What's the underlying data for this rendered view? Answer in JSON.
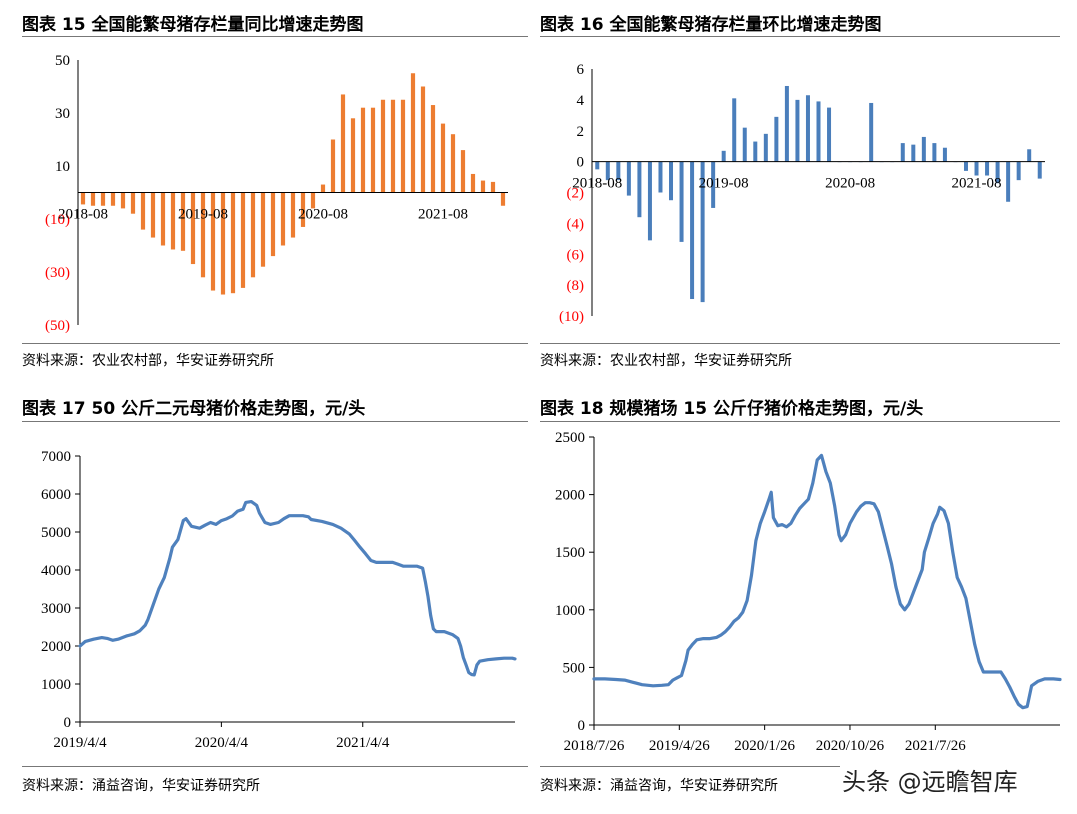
{
  "panels": [
    {
      "title": "图表 15  全国能繁母猪存栏量同比增速走势图",
      "source": "资料来源：农业农村部，华安证券研究所"
    },
    {
      "title": "图表 16 全国能繁母猪存栏量环比增速走势图",
      "source": "资料来源：农业农村部，华安证券研究所"
    },
    {
      "title": "图表 17 50 公斤二元母猪价格走势图，元/头",
      "source": "资料来源：涌益咨询，华安证券研究所"
    },
    {
      "title": "图表 18  规模猪场 15 公斤仔猪价格走势图，元/头",
      "source": "资料来源：涌益咨询，华安证券研究所"
    }
  ],
  "watermark": "头条 @远瞻智库",
  "colors": {
    "orange": "#ED7D31",
    "blue": "#4A7EBB",
    "line": "#4F81BD",
    "negative": "#FF0000"
  },
  "chart_data": [
    {
      "type": "bar",
      "ylim": [
        -50,
        50
      ],
      "yticks": [
        50,
        30,
        10,
        -10,
        -30,
        -50
      ],
      "ytick_labels": [
        "50",
        "30",
        "10",
        "(10)",
        "(30)",
        "(50)"
      ],
      "xtick_labels": [
        "2018-08",
        "2019-08",
        "2020-08",
        "2021-08"
      ],
      "xtick_positions": [
        0,
        12,
        24,
        36
      ],
      "values": [
        -4.5,
        -5,
        -5,
        -5,
        -6,
        -8,
        -14,
        -17,
        -20,
        -21.5,
        -22,
        -27,
        -32,
        -37,
        -38.5,
        -38,
        -36,
        -32,
        -28,
        -24,
        -20,
        -17,
        -13,
        -6,
        3,
        20,
        37,
        28,
        32,
        32,
        35,
        35,
        35,
        45,
        40,
        33,
        26,
        22,
        16,
        7,
        4.5,
        4,
        -5
      ]
    },
    {
      "type": "bar",
      "ylim": [
        -10,
        6
      ],
      "yticks": [
        6,
        4,
        2,
        0,
        -2,
        -4,
        -6,
        -8,
        -10
      ],
      "ytick_labels": [
        "6",
        "4",
        "2",
        "0",
        "(2)",
        "(4)",
        "(6)",
        "(8)",
        "(10)"
      ],
      "xtick_labels": [
        "2018-08",
        "2019-08",
        "2020-08",
        "2021-08"
      ],
      "xtick_positions": [
        0,
        12,
        24,
        36
      ],
      "values": [
        -0.5,
        -1.2,
        -1.2,
        -2.2,
        -3.6,
        -5.1,
        -2,
        -2.5,
        -5.2,
        -8.9,
        -9.1,
        -3,
        0.7,
        4.1,
        2.2,
        1.3,
        1.8,
        2.9,
        4.9,
        4,
        4.3,
        3.9,
        3.5,
        0,
        0,
        0,
        3.8,
        0,
        0,
        1.2,
        1.1,
        1.6,
        1.2,
        0.9,
        0,
        -0.6,
        -0.9,
        -0.9,
        -1.4,
        -2.6,
        -1.2,
        0.8,
        -1.1
      ]
    },
    {
      "type": "line",
      "ylim": [
        0,
        7000
      ],
      "yticks": [
        0,
        1000,
        2000,
        3000,
        4000,
        5000,
        6000,
        7000
      ],
      "xtick_labels": [
        "2019/4/4",
        "2020/4/4",
        "2021/4/4"
      ],
      "xtick_positions": [
        0,
        52,
        104
      ],
      "x_range": [
        0,
        146
      ],
      "points": [
        [
          0,
          2000
        ],
        [
          2,
          2120
        ],
        [
          5,
          2180
        ],
        [
          8,
          2220
        ],
        [
          10,
          2200
        ],
        [
          12,
          2150
        ],
        [
          14,
          2180
        ],
        [
          17,
          2260
        ],
        [
          20,
          2320
        ],
        [
          22,
          2400
        ],
        [
          24,
          2550
        ],
        [
          25,
          2700
        ],
        [
          27,
          3100
        ],
        [
          29,
          3500
        ],
        [
          31,
          3800
        ],
        [
          33,
          4300
        ],
        [
          34,
          4600
        ],
        [
          36,
          4800
        ],
        [
          38,
          5300
        ],
        [
          39,
          5350
        ],
        [
          41,
          5150
        ],
        [
          44,
          5100
        ],
        [
          46,
          5180
        ],
        [
          48,
          5250
        ],
        [
          50,
          5200
        ],
        [
          52,
          5300
        ],
        [
          54,
          5350
        ],
        [
          56,
          5420
        ],
        [
          58,
          5550
        ],
        [
          60,
          5600
        ],
        [
          61,
          5780
        ],
        [
          63,
          5800
        ],
        [
          65,
          5700
        ],
        [
          66,
          5500
        ],
        [
          68,
          5250
        ],
        [
          70,
          5200
        ],
        [
          73,
          5250
        ],
        [
          75,
          5350
        ],
        [
          77,
          5430
        ],
        [
          82,
          5430
        ],
        [
          84,
          5400
        ],
        [
          85,
          5330
        ],
        [
          89,
          5280
        ],
        [
          93,
          5200
        ],
        [
          96,
          5100
        ],
        [
          99,
          4950
        ],
        [
          101,
          4780
        ],
        [
          103,
          4600
        ],
        [
          105,
          4430
        ],
        [
          107,
          4250
        ],
        [
          109,
          4200
        ],
        [
          115,
          4200
        ],
        [
          117,
          4150
        ],
        [
          119,
          4100
        ],
        [
          124,
          4100
        ],
        [
          126,
          4050
        ],
        [
          127,
          3700
        ],
        [
          128,
          3300
        ],
        [
          129,
          2800
        ],
        [
          130,
          2450
        ],
        [
          131,
          2380
        ],
        [
          134,
          2380
        ],
        [
          137,
          2300
        ],
        [
          139,
          2200
        ],
        [
          140,
          2000
        ],
        [
          141,
          1700
        ],
        [
          142,
          1500
        ],
        [
          143,
          1300
        ],
        [
          144,
          1250
        ],
        [
          145,
          1240
        ],
        [
          146,
          1500
        ],
        [
          147,
          1600
        ],
        [
          150,
          1640
        ],
        [
          153,
          1660
        ],
        [
          156,
          1680
        ],
        [
          159,
          1680
        ],
        [
          160,
          1660
        ]
      ]
    },
    {
      "type": "line",
      "ylim": [
        0,
        2500
      ],
      "yticks": [
        0,
        500,
        1000,
        1500,
        2000,
        2500
      ],
      "xtick_labels": [
        "2018/7/26",
        "2019/4/26",
        "2020/1/26",
        "2020/10/26",
        "2021/7/26"
      ],
      "xtick_positions": [
        0,
        39,
        78,
        117,
        156
      ],
      "x_range": [
        0,
        195
      ],
      "points": [
        [
          0,
          400
        ],
        [
          5,
          400
        ],
        [
          10,
          395
        ],
        [
          14,
          390
        ],
        [
          18,
          370
        ],
        [
          22,
          350
        ],
        [
          27,
          340
        ],
        [
          31,
          345
        ],
        [
          34,
          350
        ],
        [
          36,
          390
        ],
        [
          38,
          410
        ],
        [
          40,
          430
        ],
        [
          42,
          560
        ],
        [
          43,
          650
        ],
        [
          45,
          700
        ],
        [
          47,
          740
        ],
        [
          50,
          750
        ],
        [
          53,
          750
        ],
        [
          56,
          760
        ],
        [
          58,
          780
        ],
        [
          60,
          810
        ],
        [
          62,
          850
        ],
        [
          64,
          900
        ],
        [
          66,
          930
        ],
        [
          68,
          980
        ],
        [
          70,
          1080
        ],
        [
          72,
          1300
        ],
        [
          74,
          1600
        ],
        [
          76,
          1750
        ],
        [
          78,
          1850
        ],
        [
          80,
          1960
        ],
        [
          81,
          2020
        ],
        [
          82,
          1800
        ],
        [
          84,
          1730
        ],
        [
          86,
          1740
        ],
        [
          88,
          1720
        ],
        [
          90,
          1750
        ],
        [
          92,
          1820
        ],
        [
          94,
          1880
        ],
        [
          96,
          1920
        ],
        [
          98,
          1960
        ],
        [
          100,
          2100
        ],
        [
          102,
          2300
        ],
        [
          104,
          2340
        ],
        [
          106,
          2200
        ],
        [
          108,
          2100
        ],
        [
          110,
          1900
        ],
        [
          112,
          1650
        ],
        [
          113,
          1600
        ],
        [
          115,
          1650
        ],
        [
          117,
          1750
        ],
        [
          120,
          1850
        ],
        [
          122,
          1900
        ],
        [
          124,
          1930
        ],
        [
          126,
          1930
        ],
        [
          128,
          1920
        ],
        [
          130,
          1850
        ],
        [
          132,
          1700
        ],
        [
          134,
          1550
        ],
        [
          136,
          1400
        ],
        [
          138,
          1200
        ],
        [
          140,
          1050
        ],
        [
          142,
          1000
        ],
        [
          144,
          1050
        ],
        [
          146,
          1150
        ],
        [
          148,
          1250
        ],
        [
          150,
          1350
        ],
        [
          151,
          1500
        ],
        [
          153,
          1620
        ],
        [
          155,
          1750
        ],
        [
          157,
          1830
        ],
        [
          158,
          1890
        ],
        [
          160,
          1860
        ],
        [
          162,
          1750
        ],
        [
          164,
          1500
        ],
        [
          166,
          1280
        ],
        [
          168,
          1200
        ],
        [
          170,
          1100
        ],
        [
          172,
          900
        ],
        [
          174,
          700
        ],
        [
          176,
          550
        ],
        [
          178,
          460
        ],
        [
          186,
          460
        ],
        [
          188,
          400
        ],
        [
          190,
          330
        ],
        [
          192,
          250
        ],
        [
          194,
          180
        ],
        [
          196,
          150
        ],
        [
          198,
          160
        ],
        [
          200,
          340
        ],
        [
          203,
          380
        ],
        [
          206,
          400
        ],
        [
          210,
          400
        ],
        [
          213,
          395
        ]
      ]
    }
  ]
}
